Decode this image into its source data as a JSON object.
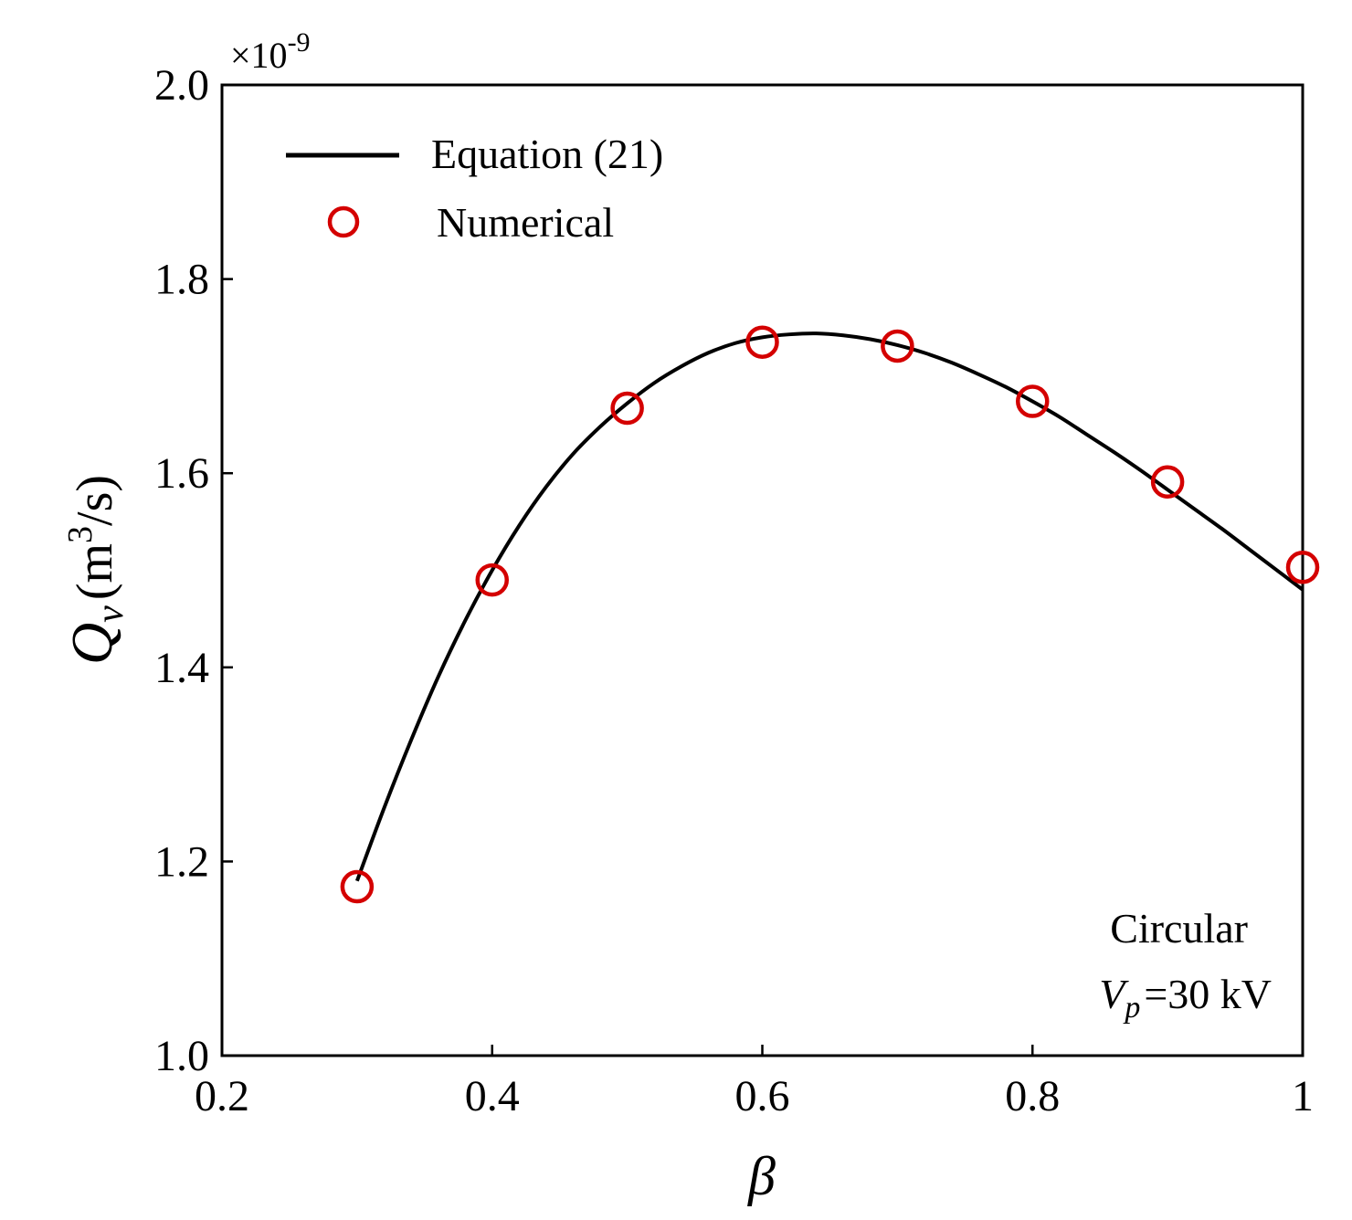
{
  "chart_data": {
    "type": "line",
    "title": "",
    "xlabel": "β",
    "ylabel": {
      "symbol": "Q",
      "subscript": "v",
      "unit_open": "(m",
      "unit_power": "3",
      "unit_close": "/s)"
    },
    "multiplier": {
      "base": "×10",
      "exponent": "-9"
    },
    "xlim": [
      0.2,
      1.0
    ],
    "ylim": [
      1.0,
      2.0
    ],
    "x_ticks": [
      0.2,
      0.4,
      0.6,
      0.8,
      1.0
    ],
    "x_tick_labels": [
      "0.2",
      "0.4",
      "0.6",
      "0.8",
      "1"
    ],
    "y_ticks": [
      1.0,
      1.2,
      1.4,
      1.6,
      1.8,
      2.0
    ],
    "y_tick_labels": [
      "1.0",
      "1.2",
      "1.4",
      "1.6",
      "1.8",
      "2.0"
    ],
    "grid": false,
    "legend_position": "top-left",
    "series": [
      {
        "name": "Equation (21)",
        "style": "solid-line",
        "color": "#000000",
        "x": [
          0.3,
          0.32,
          0.34,
          0.36,
          0.38,
          0.4,
          0.42,
          0.44,
          0.46,
          0.48,
          0.5,
          0.52,
          0.54,
          0.56,
          0.58,
          0.6,
          0.62,
          0.64,
          0.66,
          0.68,
          0.7,
          0.72,
          0.74,
          0.76,
          0.78,
          0.8,
          0.82,
          0.84,
          0.86,
          0.88,
          0.9,
          0.92,
          0.94,
          0.96,
          0.98,
          1.0
        ],
        "y": [
          1.18,
          1.255,
          1.325,
          1.39,
          1.448,
          1.5,
          1.546,
          1.586,
          1.62,
          1.648,
          1.672,
          1.693,
          1.71,
          1.724,
          1.734,
          1.74,
          1.743,
          1.744,
          1.742,
          1.738,
          1.732,
          1.724,
          1.714,
          1.702,
          1.689,
          1.674,
          1.658,
          1.64,
          1.622,
          1.603,
          1.583,
          1.563,
          1.543,
          1.522,
          1.501,
          1.48
        ]
      },
      {
        "name": "Numerical",
        "style": "open-circle",
        "color": "#d40000",
        "x": [
          0.3,
          0.4,
          0.5,
          0.6,
          0.7,
          0.8,
          0.9,
          1.0
        ],
        "y": [
          1.174,
          1.49,
          1.667,
          1.735,
          1.731,
          1.674,
          1.591,
          1.503
        ]
      }
    ],
    "annotations": {
      "line1": "Circular",
      "line2_symbol": "V",
      "line2_subscript": "p",
      "line2_value": "=30 kV"
    }
  }
}
